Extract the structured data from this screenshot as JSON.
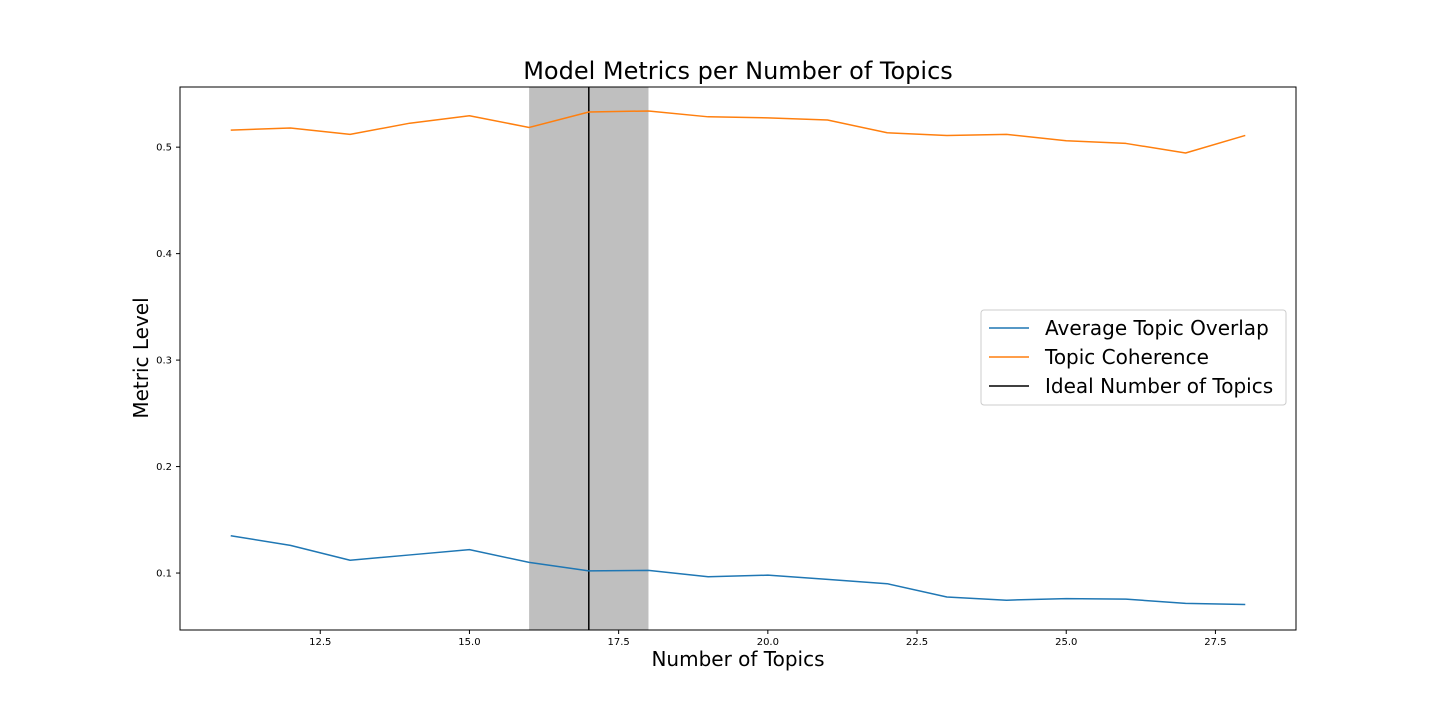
{
  "chart_data": {
    "type": "line",
    "title": "Model Metrics per Number of Topics",
    "xlabel": "Number of Topics",
    "ylabel": "Metric Level",
    "xlim": [
      10.15,
      28.85
    ],
    "ylim": [
      0.0465,
      0.5565
    ],
    "xticks": [
      12.5,
      15.0,
      17.5,
      20.0,
      22.5,
      25.0,
      27.5
    ],
    "xtick_labels": [
      "12.5",
      "15.0",
      "17.5",
      "20.0",
      "22.5",
      "25.0",
      "27.5"
    ],
    "yticks": [
      0.1,
      0.2,
      0.3,
      0.4,
      0.5
    ],
    "ytick_labels": [
      "0.1",
      "0.2",
      "0.3",
      "0.4",
      "0.5"
    ],
    "grid": false,
    "legend_position": "center-right",
    "x": [
      11,
      12,
      13,
      14,
      15,
      16,
      17,
      18,
      19,
      20,
      21,
      22,
      23,
      24,
      25,
      26,
      27,
      28
    ],
    "series": [
      {
        "name": "Average Topic Overlap",
        "color": "#1f77b4",
        "values": [
          0.135,
          0.126,
          0.112,
          0.117,
          0.122,
          0.11,
          0.102,
          0.1025,
          0.0965,
          0.098,
          0.094,
          0.09,
          0.0775,
          0.0745,
          0.076,
          0.0755,
          0.0715,
          0.0705
        ]
      },
      {
        "name": "Topic Coherence",
        "color": "#ff7f0e",
        "values": [
          0.516,
          0.518,
          0.512,
          0.5225,
          0.5295,
          0.5185,
          0.533,
          0.534,
          0.5285,
          0.5275,
          0.5255,
          0.5135,
          0.511,
          0.512,
          0.506,
          0.5035,
          0.4945,
          0.511
        ]
      }
    ],
    "vline": {
      "name": "Ideal Number of Topics",
      "x": 17,
      "color": "#000000"
    },
    "shaded_span": {
      "x_start": 16,
      "x_end": 18,
      "color": "#bfbfbf"
    }
  }
}
